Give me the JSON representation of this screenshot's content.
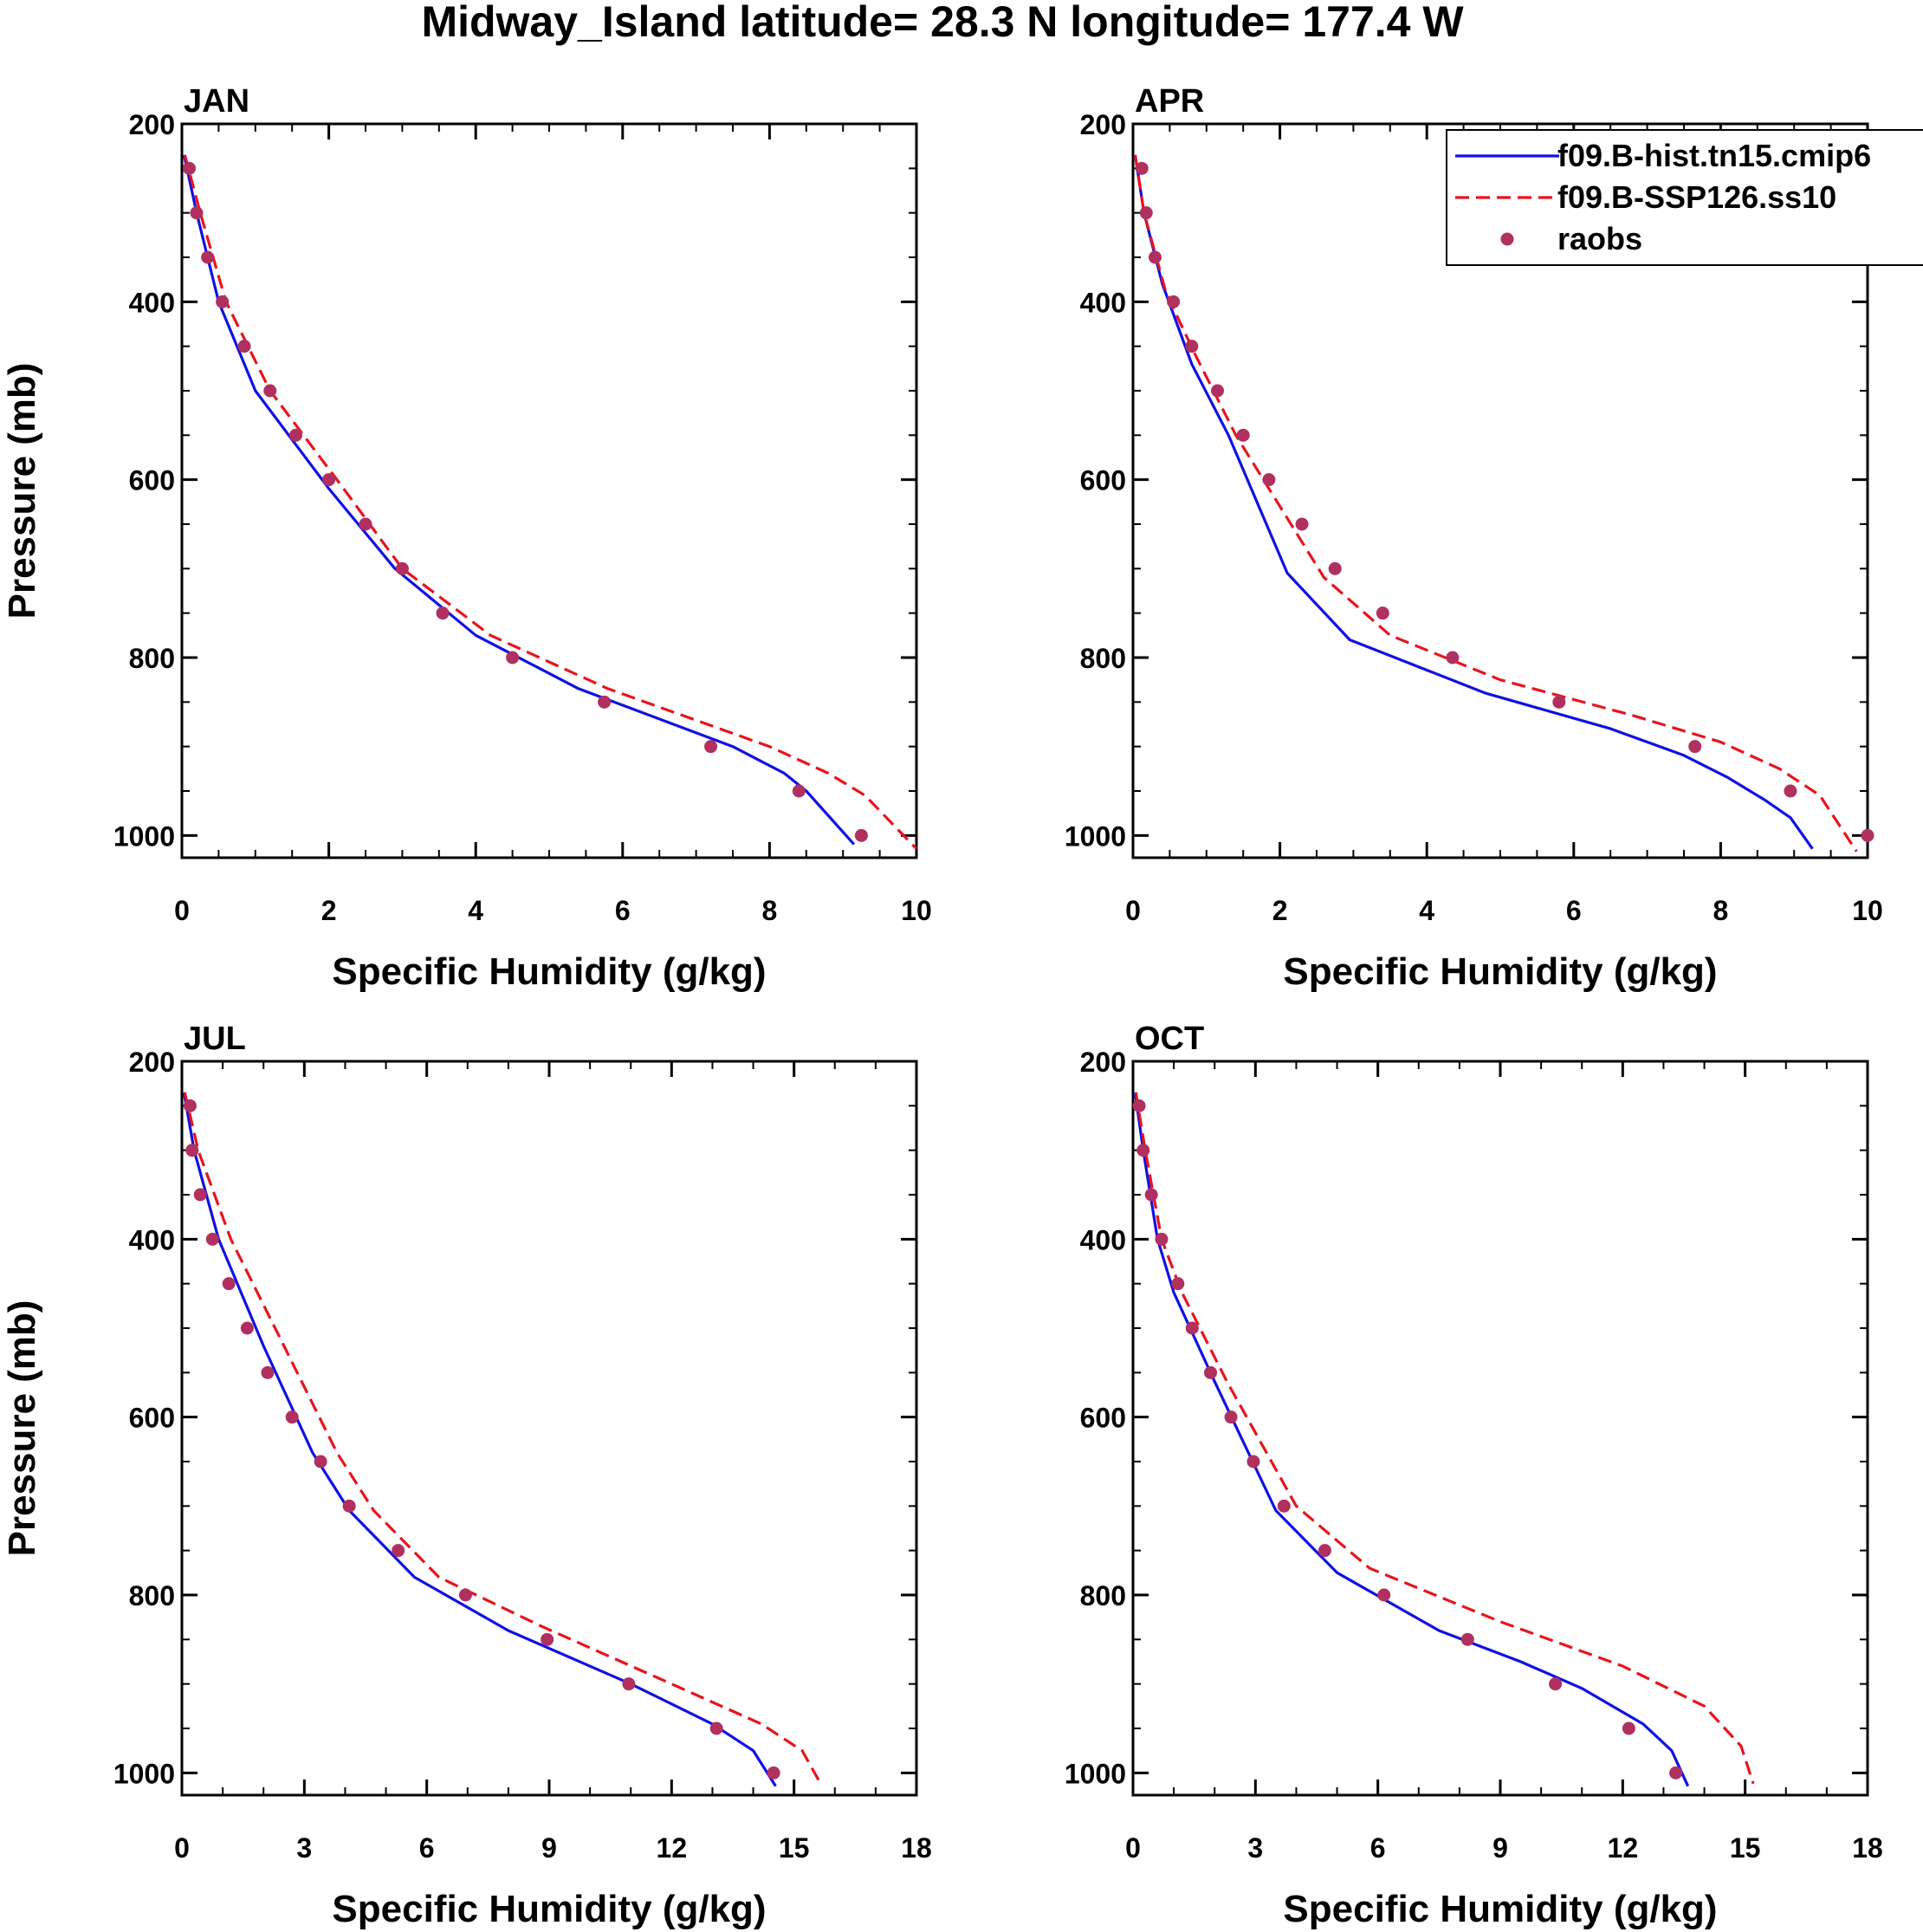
{
  "figure_title": "Midway_Island  latitude= 28.3 N longitude= 177.4 W",
  "colors": {
    "hist": "#1010e6",
    "ssp": "#e8141c",
    "raobs": "#b03060",
    "axis": "#000000"
  },
  "legend": {
    "labels": [
      "f09.B-hist.tn15.cmip6",
      "f09.B-SSP126.ss10",
      "raobs"
    ]
  },
  "chart_data": [
    {
      "type": "line",
      "title": "JAN",
      "xlabel": "Specific Humidity (g/kg)",
      "ylabel": "Pressure (mb)",
      "xlim": [
        0,
        10
      ],
      "ylim": [
        200,
        1025
      ],
      "xticks": [
        0,
        2,
        4,
        6,
        8,
        10
      ],
      "xminor": [
        0.5,
        1,
        1.5,
        2.5,
        3,
        3.5,
        4.5,
        5,
        5.5,
        6.5,
        7,
        7.5,
        8.5,
        9,
        9.5
      ],
      "yticks": [
        200,
        400,
        600,
        800,
        1000
      ],
      "yticklabels": [
        "200",
        "400",
        "600",
        "800",
        "1000"
      ],
      "yminor": [
        250,
        300,
        350,
        450,
        500,
        550,
        650,
        700,
        750,
        850,
        900,
        950
      ],
      "series": [
        {
          "name": "f09.B-hist.tn15.cmip6",
          "style": "solid",
          "x": [
            0.03,
            0.2,
            0.5,
            1.0,
            2.0,
            2.9,
            4.0,
            5.4,
            7.5,
            8.2,
            8.5,
            9.15
          ],
          "y": [
            235,
            300,
            400,
            500,
            610,
            700,
            775,
            835,
            900,
            930,
            950,
            1010
          ]
        },
        {
          "name": "f09.B-SSP126.ss10",
          "style": "dashed",
          "x": [
            0.04,
            0.25,
            0.6,
            1.2,
            2.2,
            3.0,
            4.2,
            5.8,
            8.0,
            8.8,
            9.3,
            10.0
          ],
          "y": [
            235,
            300,
            400,
            500,
            610,
            700,
            775,
            835,
            900,
            930,
            955,
            1015
          ]
        },
        {
          "name": "raobs",
          "style": "marker",
          "x": [
            0.1,
            0.2,
            0.35,
            0.55,
            0.85,
            1.2,
            1.55,
            2.0,
            2.5,
            3.0,
            3.55,
            4.5,
            5.75,
            7.2,
            8.4,
            9.25
          ],
          "y": [
            250,
            300,
            350,
            400,
            450,
            500,
            550,
            600,
            650,
            700,
            750,
            800,
            850,
            900,
            950,
            1000
          ]
        }
      ]
    },
    {
      "type": "line",
      "title": "APR",
      "xlabel": "Specific Humidity (g/kg)",
      "ylabel": "",
      "xlim": [
        0,
        10
      ],
      "ylim": [
        200,
        1025
      ],
      "xticks": [
        0,
        2,
        4,
        6,
        8,
        10
      ],
      "xminor": [
        0.5,
        1,
        1.5,
        2.5,
        3,
        3.5,
        4.5,
        5,
        5.5,
        6.5,
        7,
        7.5,
        8.5,
        9,
        9.5
      ],
      "yticks": [
        200,
        400,
        600,
        800,
        1000
      ],
      "yticklabels": [
        "200",
        "400",
        "600",
        "800",
        "1000"
      ],
      "yminor": [
        250,
        300,
        350,
        450,
        500,
        550,
        650,
        700,
        750,
        850,
        900,
        950
      ],
      "series": [
        {
          "name": "f09.B-hist.tn15.cmip6",
          "style": "solid",
          "x": [
            0.03,
            0.15,
            0.4,
            0.8,
            1.3,
            2.1,
            2.95,
            4.8,
            6.5,
            7.5,
            8.1,
            8.6,
            8.95,
            9.25
          ],
          "y": [
            235,
            300,
            380,
            470,
            550,
            705,
            780,
            840,
            880,
            910,
            935,
            960,
            980,
            1015
          ]
        },
        {
          "name": "f09.B-SSP126.ss10",
          "style": "dashed",
          "x": [
            0.03,
            0.15,
            0.45,
            0.85,
            1.4,
            2.6,
            3.5,
            5.0,
            6.8,
            8.0,
            8.8,
            9.35,
            9.85
          ],
          "y": [
            235,
            300,
            390,
            460,
            550,
            710,
            775,
            825,
            865,
            895,
            925,
            955,
            1018
          ]
        },
        {
          "name": "raobs",
          "style": "marker",
          "x": [
            0.12,
            0.18,
            0.3,
            0.55,
            0.8,
            1.15,
            1.5,
            1.85,
            2.3,
            2.75,
            3.4,
            4.35,
            5.8,
            7.65,
            8.95,
            10.0
          ],
          "y": [
            250,
            300,
            350,
            400,
            450,
            500,
            550,
            600,
            650,
            700,
            750,
            800,
            850,
            900,
            950,
            1000
          ]
        }
      ]
    },
    {
      "type": "line",
      "title": "JUL",
      "xlabel": "Specific Humidity (g/kg)",
      "ylabel": "Pressure (mb)",
      "xlim": [
        0,
        18
      ],
      "ylim": [
        200,
        1025
      ],
      "xticks": [
        0,
        3,
        6,
        9,
        12,
        15,
        18
      ],
      "xminor": [
        1,
        2,
        4,
        5,
        7,
        8,
        10,
        11,
        13,
        14,
        16,
        17
      ],
      "yticks": [
        200,
        400,
        600,
        800,
        1000
      ],
      "yticklabels": [
        "200",
        "400",
        "600",
        "800",
        "1000"
      ],
      "yminor": [
        250,
        300,
        350,
        450,
        500,
        550,
        650,
        700,
        750,
        850,
        900,
        950
      ],
      "series": [
        {
          "name": "f09.B-hist.tn15.cmip6",
          "style": "solid",
          "x": [
            0.05,
            0.3,
            0.9,
            2.0,
            3.2,
            4.1,
            5.7,
            8.0,
            11.0,
            13.0,
            14.0,
            14.55
          ],
          "y": [
            235,
            300,
            400,
            520,
            640,
            705,
            780,
            840,
            900,
            945,
            975,
            1015
          ]
        },
        {
          "name": "f09.B-SSP126.ss10",
          "style": "dashed",
          "x": [
            0.07,
            0.4,
            1.2,
            2.5,
            3.8,
            4.7,
            6.3,
            8.8,
            12.0,
            14.2,
            15.2,
            15.65
          ],
          "y": [
            235,
            300,
            400,
            520,
            640,
            705,
            780,
            835,
            900,
            945,
            975,
            1012
          ]
        },
        {
          "name": "raobs",
          "style": "marker",
          "x": [
            0.2,
            0.25,
            0.45,
            0.75,
            1.15,
            1.6,
            2.1,
            2.7,
            3.4,
            4.1,
            5.3,
            6.95,
            8.95,
            10.95,
            13.1,
            14.5
          ],
          "y": [
            250,
            300,
            350,
            400,
            450,
            500,
            550,
            600,
            650,
            700,
            750,
            800,
            850,
            900,
            950,
            1000
          ]
        }
      ]
    },
    {
      "type": "line",
      "title": "OCT",
      "xlabel": "Specific Humidity (g/kg)",
      "ylabel": "",
      "xlim": [
        0,
        18
      ],
      "ylim": [
        200,
        1025
      ],
      "xticks": [
        0,
        3,
        6,
        9,
        12,
        15,
        18
      ],
      "xminor": [
        1,
        2,
        4,
        5,
        7,
        8,
        10,
        11,
        13,
        14,
        16,
        17
      ],
      "yticks": [
        200,
        400,
        600,
        800,
        1000
      ],
      "yticklabels": [
        "200",
        "400",
        "600",
        "800",
        "1000"
      ],
      "yminor": [
        250,
        300,
        350,
        450,
        500,
        550,
        650,
        700,
        750,
        850,
        900,
        950
      ],
      "series": [
        {
          "name": "f09.B-hist.tn15.cmip6",
          "style": "solid",
          "x": [
            0.05,
            0.25,
            0.6,
            1.0,
            2.0,
            3.5,
            5.0,
            7.5,
            9.5,
            11.0,
            12.5,
            13.2,
            13.6
          ],
          "y": [
            235,
            300,
            400,
            460,
            560,
            705,
            775,
            840,
            875,
            905,
            945,
            975,
            1015
          ]
        },
        {
          "name": "f09.B-SSP126.ss10",
          "style": "dashed",
          "x": [
            0.07,
            0.3,
            0.7,
            1.2,
            2.3,
            4.0,
            5.8,
            9.0,
            12.0,
            14.0,
            14.9,
            15.2
          ],
          "y": [
            235,
            300,
            400,
            460,
            560,
            700,
            770,
            830,
            880,
            925,
            970,
            1012
          ]
        },
        {
          "name": "raobs",
          "style": "marker",
          "x": [
            0.15,
            0.25,
            0.45,
            0.7,
            1.1,
            1.45,
            1.9,
            2.4,
            2.95,
            3.7,
            4.7,
            6.15,
            8.2,
            10.35,
            12.15,
            13.3
          ],
          "y": [
            250,
            300,
            350,
            400,
            450,
            500,
            550,
            600,
            650,
            700,
            750,
            800,
            850,
            900,
            950,
            1000
          ]
        }
      ]
    }
  ]
}
